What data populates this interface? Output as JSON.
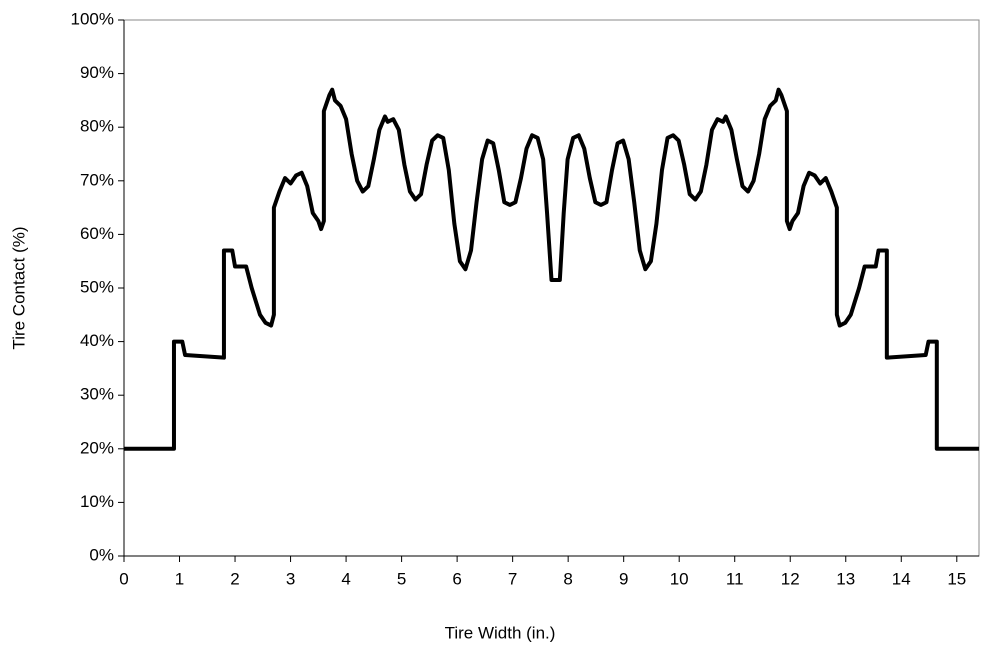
{
  "chart_data": {
    "type": "line",
    "x_label": "Tire Width (in.)",
    "y_label": "Tire Contact (%)",
    "color": "#000000",
    "x": [
      0,
      0.9,
      0.9,
      1.05,
      1.1,
      1.8,
      1.8,
      1.95,
      2.0,
      2.2,
      2.3,
      2.45,
      2.55,
      2.65,
      2.7,
      2.7,
      2.8,
      2.9,
      3.0,
      3.1,
      3.2,
      3.3,
      3.4,
      3.5,
      3.55,
      3.6,
      3.6,
      3.7,
      3.75,
      3.8,
      3.9,
      4.0,
      4.1,
      4.2,
      4.3,
      4.4,
      4.5,
      4.6,
      4.7,
      4.75,
      4.85,
      4.95,
      5.05,
      5.15,
      5.25,
      5.35,
      5.45,
      5.55,
      5.65,
      5.75,
      5.85,
      5.95,
      6.05,
      6.15,
      6.25,
      6.35,
      6.45,
      6.55,
      6.65,
      6.75,
      6.85,
      6.95,
      7.05,
      7.15,
      7.25,
      7.35,
      7.45,
      7.55,
      7.62,
      7.7,
      7.85,
      7.92,
      7.99,
      8.09,
      8.19,
      8.29,
      8.39,
      8.49,
      8.59,
      8.69,
      8.79,
      8.89,
      8.99,
      9.09,
      9.19,
      9.29,
      9.39,
      9.49,
      9.59,
      9.69,
      9.79,
      9.89,
      9.99,
      10.09,
      10.19,
      10.29,
      10.39,
      10.49,
      10.59,
      10.69,
      10.79,
      10.84,
      10.94,
      11.04,
      11.14,
      11.24,
      11.34,
      11.44,
      11.54,
      11.64,
      11.74,
      11.79,
      11.84,
      11.94,
      11.94,
      11.99,
      12.04,
      12.14,
      12.24,
      12.34,
      12.44,
      12.54,
      12.64,
      12.74,
      12.84,
      12.84,
      12.89,
      12.99,
      13.09,
      13.24,
      13.34,
      13.54,
      13.59,
      13.74,
      13.74,
      14.44,
      14.49,
      14.64,
      14.64,
      15.4
    ],
    "values": [
      20,
      20,
      40,
      40,
      37.5,
      37,
      57,
      57,
      54,
      54,
      50,
      45,
      43.5,
      43,
      45,
      65,
      68,
      70.5,
      69.5,
      71,
      71.5,
      69,
      64,
      62.5,
      61,
      62.5,
      83,
      86,
      87,
      85,
      84,
      81.5,
      75,
      70,
      68,
      69,
      74,
      79.5,
      82,
      81,
      81.5,
      79.5,
      73,
      68,
      66.5,
      67.5,
      73,
      77.5,
      78.5,
      78,
      72,
      62,
      55,
      53.5,
      57,
      66,
      74,
      77.5,
      77,
      72,
      66,
      65.5,
      66,
      70.5,
      76,
      78.5,
      78,
      74,
      64,
      51.5,
      51.5,
      64,
      74,
      78,
      78.5,
      76,
      70.5,
      66,
      65.5,
      66,
      72,
      77,
      77.5,
      74,
      66,
      57,
      53.5,
      55,
      62,
      72,
      78,
      78.5,
      77.5,
      73,
      67.5,
      66.5,
      68,
      73,
      79.5,
      81.5,
      81,
      82,
      79.5,
      74,
      69,
      68,
      70,
      75,
      81.5,
      84,
      85,
      87,
      86,
      83,
      62.5,
      61,
      62.5,
      64,
      69,
      71.5,
      71,
      69.5,
      70.5,
      68,
      65,
      45,
      43,
      43.5,
      45,
      50,
      54,
      54,
      57,
      57,
      37,
      37.5,
      40,
      40,
      20,
      20
    ],
    "xlim": [
      0,
      15.4
    ],
    "xticks": [
      0,
      1,
      2,
      3,
      4,
      5,
      6,
      7,
      8,
      9,
      10,
      11,
      12,
      13,
      14,
      15
    ],
    "ylim": [
      0,
      100
    ],
    "yticks": [
      {
        "value": 0,
        "label": "0%"
      },
      {
        "value": 10,
        "label": "10%"
      },
      {
        "value": 20,
        "label": "20%"
      },
      {
        "value": 30,
        "label": "30%"
      },
      {
        "value": 40,
        "label": "40%"
      },
      {
        "value": 50,
        "label": "50%"
      },
      {
        "value": 60,
        "label": "60%"
      },
      {
        "value": 70,
        "label": "70%"
      },
      {
        "value": 80,
        "label": "80%"
      },
      {
        "value": 90,
        "label": "90%"
      },
      {
        "value": 100,
        "label": "100%"
      }
    ]
  }
}
